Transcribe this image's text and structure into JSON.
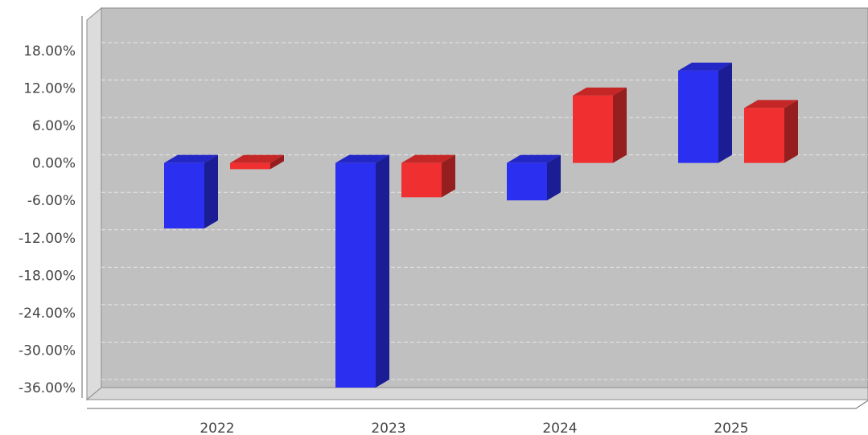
{
  "chart_data": {
    "type": "bar",
    "three_d": true,
    "categories": [
      "2022",
      "2023",
      "2024",
      "2025"
    ],
    "series": [
      {
        "color": "#2b2ff0",
        "values": [
          -10.5,
          -36.0,
          -6.0,
          14.8
        ]
      },
      {
        "color": "#f03030",
        "values": [
          -1.0,
          -5.5,
          10.8,
          8.8
        ]
      }
    ],
    "ylim": [
      -36,
      18
    ],
    "yticks": [
      18,
      12,
      6,
      0,
      -6,
      -12,
      -18,
      -24,
      -30,
      -36
    ],
    "ytick_labels": [
      "18.00%",
      "12.00%",
      "6.00%",
      "0.00%",
      "-6.00%",
      "-12.00%",
      "-18.00%",
      "-24.00%",
      "-30.00%",
      "-36.00%"
    ],
    "grid": true,
    "plot_background": "#c0c0c0",
    "legend": false
  }
}
